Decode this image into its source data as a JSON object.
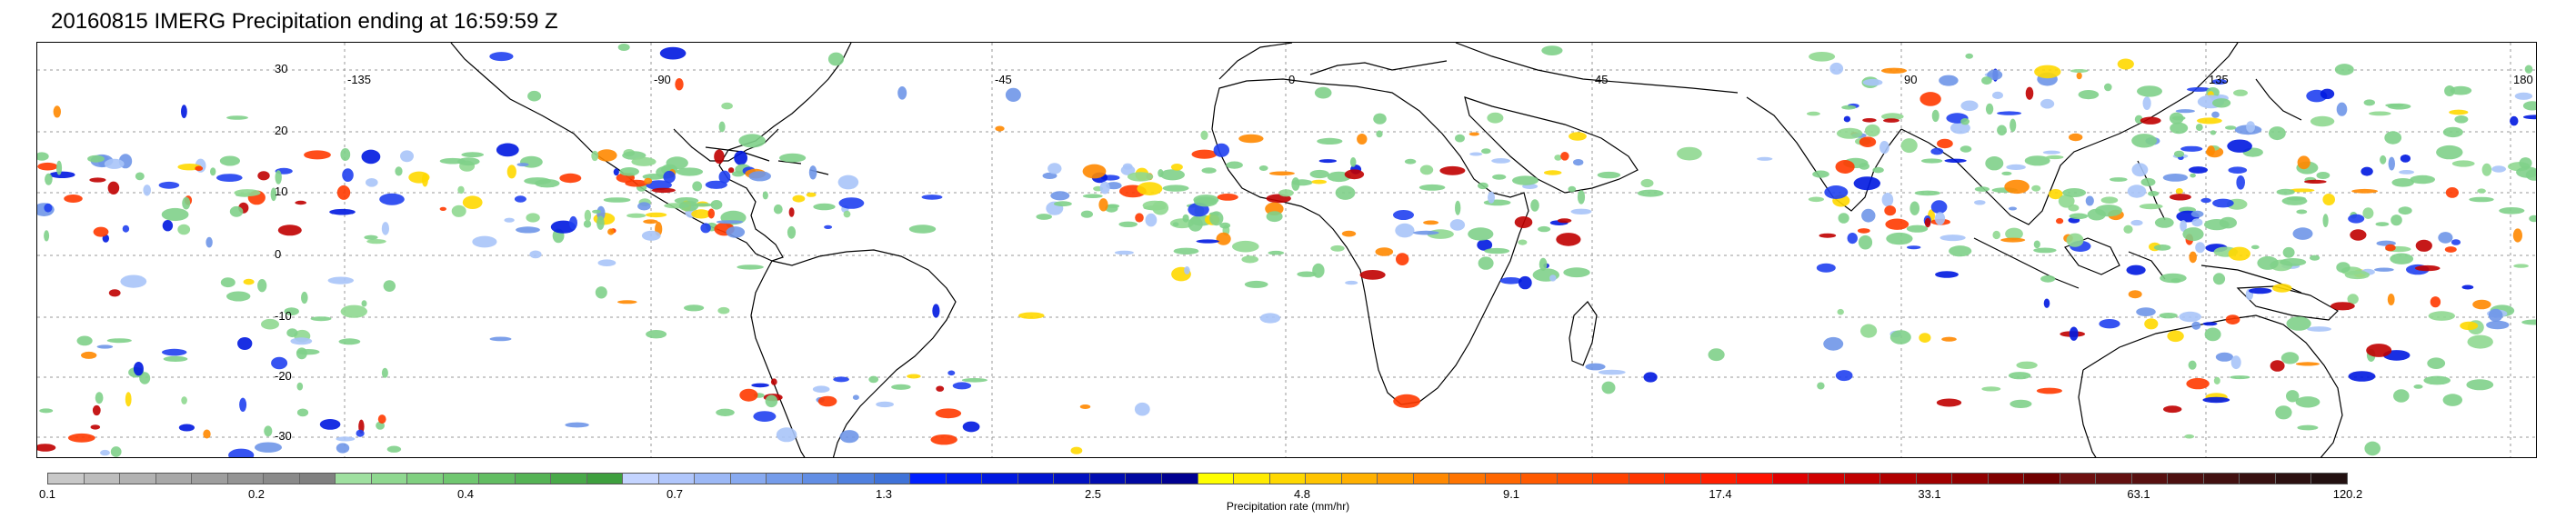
{
  "title": "20160815 IMERG Precipitation ending at 16:59:59 Z",
  "map": {
    "lon_labels": [
      "-135",
      "-90",
      "-45",
      "0",
      "45",
      "90",
      "135",
      "180"
    ],
    "lat_labels": [
      "30",
      "20",
      "10",
      "0",
      "-10",
      "-20",
      "-30"
    ]
  },
  "colorbar": {
    "label": "Precipitation rate (mm/hr)",
    "ticks": [
      "0.1",
      "0.2",
      "0.4",
      "0.7",
      "1.3",
      "2.5",
      "4.8",
      "9.1",
      "17.4",
      "33.1",
      "63.1",
      "120.2"
    ],
    "colors": [
      "#c8c8c8",
      "#bdbdbd",
      "#b2b2b2",
      "#a8a8a8",
      "#9e9e9e",
      "#949494",
      "#8a8a8a",
      "#808080",
      "#9fe0a0",
      "#8fd890",
      "#80d080",
      "#70c770",
      "#62bd62",
      "#55b355",
      "#49a949",
      "#3e9f3e",
      "#c4d4ff",
      "#b0c6fb",
      "#9cb8f5",
      "#88aaf0",
      "#759cea",
      "#628ee4",
      "#5080de",
      "#3f72d8",
      "#0020ff",
      "#001cf0",
      "#0018e0",
      "#0014d0",
      "#0010c0",
      "#000cb0",
      "#0008a0",
      "#000090",
      "#ffff00",
      "#ffeb00",
      "#ffd800",
      "#ffc400",
      "#ffb000",
      "#ff9c00",
      "#ff8800",
      "#ff7400",
      "#ff6600",
      "#ff5a00",
      "#ff4e00",
      "#ff4200",
      "#ff3600",
      "#ff2a00",
      "#ff1e00",
      "#ff1200",
      "#e00000",
      "#d00000",
      "#c00000",
      "#b00000",
      "#a00000",
      "#900000",
      "#800000",
      "#700000",
      "#6e1010",
      "#631010",
      "#581010",
      "#4d1010",
      "#421010",
      "#371010",
      "#2c1010",
      "#221010"
    ]
  }
}
